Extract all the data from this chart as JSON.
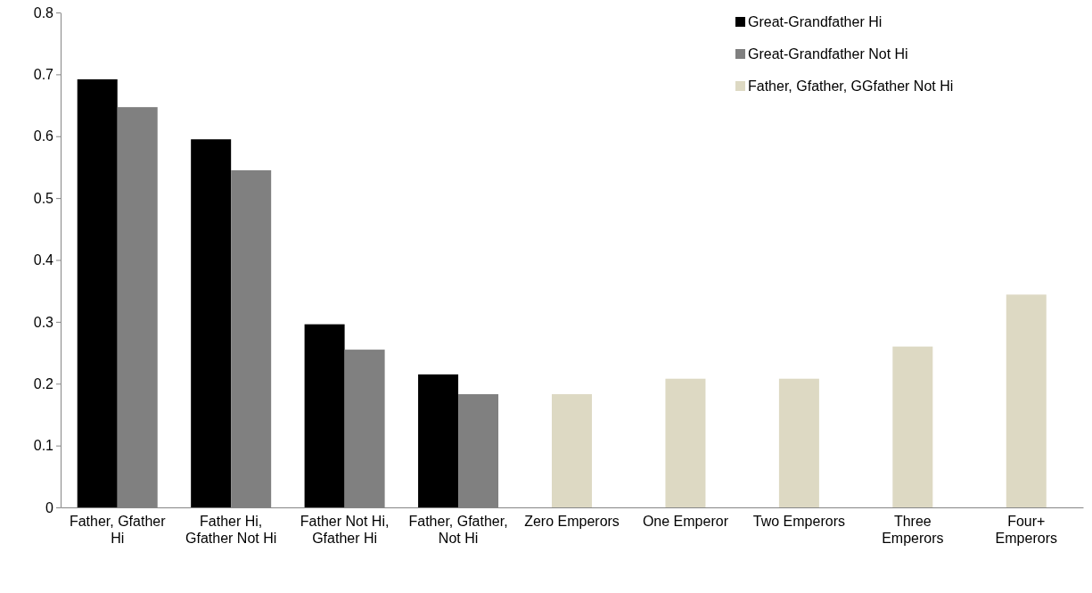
{
  "chart_data": {
    "type": "bar",
    "categories": [
      "Father, Gfather Hi",
      "Father Hi, Gfather Not Hi",
      "Father Not Hi, Gfather Hi",
      "Father, Gfather, Not Hi",
      "Zero Emperors",
      "One Emperor",
      "Two Emperors",
      "Three Emperors",
      "Four+ Emperors"
    ],
    "series": [
      {
        "name": "Great-Grandfather Hi",
        "color": "#000000",
        "values": [
          0.692,
          0.595,
          0.296,
          0.215,
          null,
          null,
          null,
          null,
          null
        ]
      },
      {
        "name": "Great-Grandfather Not Hi",
        "color": "#808080",
        "values": [
          0.647,
          0.545,
          0.255,
          0.183,
          null,
          null,
          null,
          null,
          null
        ]
      },
      {
        "name": "Father, Gfather, GGfather Not Hi",
        "color": "#ddd9c3",
        "values": [
          null,
          null,
          null,
          null,
          0.183,
          0.208,
          0.208,
          0.26,
          0.344
        ]
      }
    ],
    "ylim": [
      0,
      0.8
    ],
    "yticks": [
      0,
      0.1,
      0.2,
      0.3,
      0.4,
      0.5,
      0.6,
      0.7,
      0.8
    ],
    "grid": false,
    "legend": "top right"
  }
}
